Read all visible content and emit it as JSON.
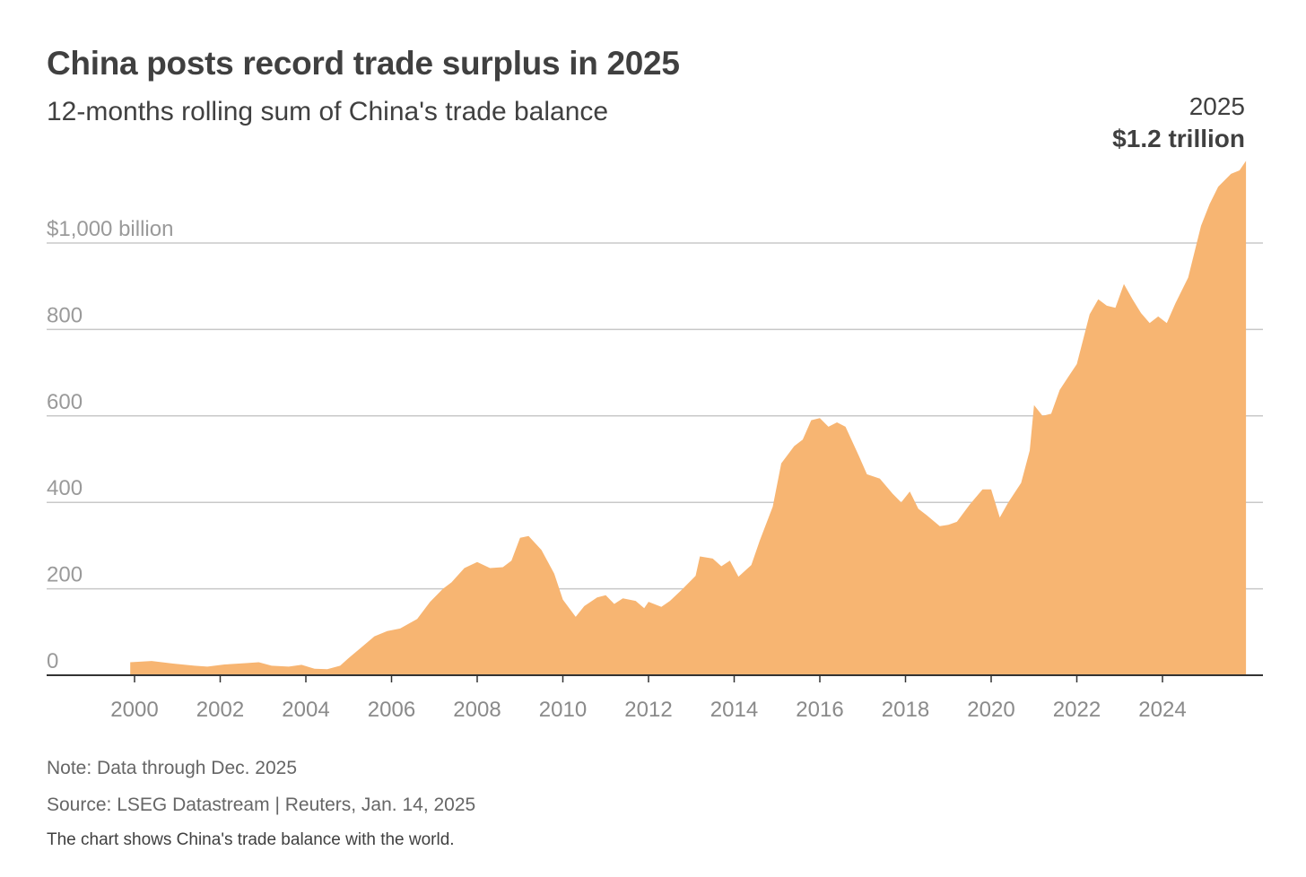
{
  "header": {
    "title": "China posts record trade surplus in 2025",
    "subtitle": "12-months rolling sum of China's trade balance"
  },
  "annotation": {
    "year": "2025",
    "value": "$1.2 trillion"
  },
  "footer": {
    "note": "Note: Data through Dec. 2025",
    "source": "Source: LSEG Datastream | Reuters, Jan. 14, 2025",
    "description": "The chart shows China's trade balance with the world."
  },
  "colors": {
    "area": "#f7b572",
    "gridline": "#c8c8c8",
    "baseline": "#333333",
    "label": "#9a9a9a"
  },
  "chart_data": {
    "type": "area",
    "title": "China posts record trade surplus in 2025",
    "subtitle": "12-months rolling sum of China's trade balance",
    "ylim": [
      0,
      1200
    ],
    "xlim": [
      1999.8,
      2026.0
    ],
    "grid": true,
    "y_ticks": [
      {
        "value": 0,
        "label": "0"
      },
      {
        "value": 200,
        "label": "200"
      },
      {
        "value": 400,
        "label": "400"
      },
      {
        "value": 600,
        "label": "600"
      },
      {
        "value": 800,
        "label": "800"
      },
      {
        "value": 1000,
        "label": "$1,000 billion"
      }
    ],
    "x_ticks": [
      {
        "value": 2000,
        "label": "2000"
      },
      {
        "value": 2002,
        "label": "2002"
      },
      {
        "value": 2004,
        "label": "2004"
      },
      {
        "value": 2006,
        "label": "2006"
      },
      {
        "value": 2008,
        "label": "2008"
      },
      {
        "value": 2010,
        "label": "2010"
      },
      {
        "value": 2012,
        "label": "2012"
      },
      {
        "value": 2014,
        "label": "2014"
      },
      {
        "value": 2016,
        "label": "2016"
      },
      {
        "value": 2018,
        "label": "2018"
      },
      {
        "value": 2020,
        "label": "2020"
      },
      {
        "value": 2022,
        "label": "2022"
      },
      {
        "value": 2024,
        "label": "2024"
      }
    ],
    "series": [
      {
        "values": [
          [
            1999.9,
            30
          ],
          [
            2000.4,
            33
          ],
          [
            2000.9,
            27
          ],
          [
            2001.4,
            22
          ],
          [
            2001.7,
            20
          ],
          [
            2002.1,
            25
          ],
          [
            2002.6,
            28
          ],
          [
            2002.9,
            30
          ],
          [
            2003.2,
            22
          ],
          [
            2003.6,
            20
          ],
          [
            2003.9,
            24
          ],
          [
            2004.2,
            15
          ],
          [
            2004.5,
            14
          ],
          [
            2004.8,
            22
          ],
          [
            2005.0,
            40
          ],
          [
            2005.3,
            65
          ],
          [
            2005.6,
            90
          ],
          [
            2005.9,
            102
          ],
          [
            2006.2,
            108
          ],
          [
            2006.6,
            130
          ],
          [
            2006.9,
            170
          ],
          [
            2007.2,
            200
          ],
          [
            2007.4,
            215
          ],
          [
            2007.7,
            248
          ],
          [
            2008.0,
            262
          ],
          [
            2008.3,
            248
          ],
          [
            2008.6,
            250
          ],
          [
            2008.8,
            265
          ],
          [
            2009.0,
            318
          ],
          [
            2009.2,
            322
          ],
          [
            2009.5,
            290
          ],
          [
            2009.8,
            235
          ],
          [
            2010.0,
            175
          ],
          [
            2010.3,
            135
          ],
          [
            2010.5,
            160
          ],
          [
            2010.8,
            180
          ],
          [
            2011.0,
            185
          ],
          [
            2011.2,
            165
          ],
          [
            2011.4,
            178
          ],
          [
            2011.7,
            172
          ],
          [
            2011.9,
            155
          ],
          [
            2012.0,
            170
          ],
          [
            2012.3,
            158
          ],
          [
            2012.5,
            172
          ],
          [
            2012.8,
            200
          ],
          [
            2013.1,
            230
          ],
          [
            2013.2,
            275
          ],
          [
            2013.5,
            270
          ],
          [
            2013.7,
            252
          ],
          [
            2013.9,
            265
          ],
          [
            2014.1,
            228
          ],
          [
            2014.4,
            255
          ],
          [
            2014.6,
            312
          ],
          [
            2014.9,
            390
          ],
          [
            2015.1,
            490
          ],
          [
            2015.4,
            530
          ],
          [
            2015.6,
            545
          ],
          [
            2015.8,
            590
          ],
          [
            2016.0,
            595
          ],
          [
            2016.2,
            575
          ],
          [
            2016.4,
            585
          ],
          [
            2016.6,
            575
          ],
          [
            2016.9,
            510
          ],
          [
            2017.1,
            465
          ],
          [
            2017.4,
            455
          ],
          [
            2017.7,
            420
          ],
          [
            2017.9,
            400
          ],
          [
            2018.1,
            425
          ],
          [
            2018.3,
            385
          ],
          [
            2018.5,
            370
          ],
          [
            2018.8,
            345
          ],
          [
            2019.0,
            348
          ],
          [
            2019.2,
            355
          ],
          [
            2019.5,
            395
          ],
          [
            2019.8,
            430
          ],
          [
            2020.0,
            430
          ],
          [
            2020.2,
            365
          ],
          [
            2020.4,
            400
          ],
          [
            2020.7,
            445
          ],
          [
            2020.9,
            520
          ],
          [
            2021.0,
            625
          ],
          [
            2021.2,
            600
          ],
          [
            2021.4,
            605
          ],
          [
            2021.6,
            660
          ],
          [
            2021.8,
            690
          ],
          [
            2022.0,
            720
          ],
          [
            2022.3,
            835
          ],
          [
            2022.5,
            870
          ],
          [
            2022.7,
            855
          ],
          [
            2022.9,
            850
          ],
          [
            2023.1,
            905
          ],
          [
            2023.3,
            870
          ],
          [
            2023.5,
            838
          ],
          [
            2023.7,
            815
          ],
          [
            2023.9,
            830
          ],
          [
            2024.1,
            815
          ],
          [
            2024.3,
            860
          ],
          [
            2024.6,
            920
          ],
          [
            2024.9,
            1040
          ],
          [
            2025.1,
            1090
          ],
          [
            2025.3,
            1130
          ],
          [
            2025.6,
            1160
          ],
          [
            2025.8,
            1168
          ],
          [
            2025.95,
            1190
          ]
        ]
      }
    ]
  }
}
